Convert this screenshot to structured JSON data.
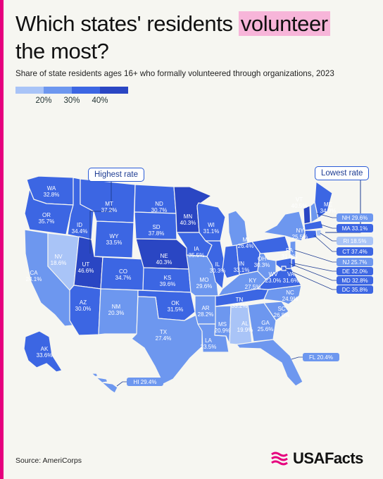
{
  "title": {
    "part1": "Which states' residents",
    "highlight": "volunteer",
    "part2": "the most?"
  },
  "subtitle": "Share of state residents ages 16+ who formally volunteered through organizations, 2023",
  "legend": {
    "colors": [
      "#a9c4f7",
      "#6d97ef",
      "#3c66e3",
      "#2a46c3"
    ],
    "ticks": [
      "20%",
      "30%",
      "40%"
    ]
  },
  "callouts": {
    "highest": "Highest rate",
    "lowest": "Lowest rate"
  },
  "source": "Source: AmeriCorps",
  "brand": "USAFacts",
  "colors": {
    "accent": "#e6007e",
    "highlight": "#f7b5d9",
    "map_outline": "#f6f6f1"
  },
  "map_data": [
    {
      "state": "WA",
      "value": "32.8%"
    },
    {
      "state": "OR",
      "value": "35.7%"
    },
    {
      "state": "CA",
      "value": "24.1%"
    },
    {
      "state": "NV",
      "value": "18.6%"
    },
    {
      "state": "ID",
      "value": "34.4%"
    },
    {
      "state": "MT",
      "value": "37.2%"
    },
    {
      "state": "WY",
      "value": "33.5%"
    },
    {
      "state": "UT",
      "value": "46.6%"
    },
    {
      "state": "AZ",
      "value": "30.0%"
    },
    {
      "state": "CO",
      "value": "34.7%"
    },
    {
      "state": "NM",
      "value": "20.3%"
    },
    {
      "state": "ND",
      "value": "30.7%"
    },
    {
      "state": "SD",
      "value": "37.8%"
    },
    {
      "state": "NE",
      "value": "40.3%"
    },
    {
      "state": "KS",
      "value": "39.6%"
    },
    {
      "state": "OK",
      "value": "31.5%"
    },
    {
      "state": "TX",
      "value": "27.4%"
    },
    {
      "state": "MN",
      "value": "40.3%"
    },
    {
      "state": "IA",
      "value": "35.5%"
    },
    {
      "state": "MO",
      "value": "29.6%"
    },
    {
      "state": "AR",
      "value": "28.2%"
    },
    {
      "state": "LA",
      "value": "23.5%"
    },
    {
      "state": "WI",
      "value": "31.1%"
    },
    {
      "state": "IL",
      "value": "30.3%"
    },
    {
      "state": "MI",
      "value": "26.4%"
    },
    {
      "state": "IN",
      "value": "33.1%"
    },
    {
      "state": "OH",
      "value": "30.3%"
    },
    {
      "state": "KY",
      "value": "27.5%"
    },
    {
      "state": "TN",
      "value": "33.2%"
    },
    {
      "state": "MS",
      "value": "20.9%"
    },
    {
      "state": "AL",
      "value": "19.9%"
    },
    {
      "state": "GA",
      "value": "25.6%"
    },
    {
      "state": "FL",
      "value": "20.4%"
    },
    {
      "state": "SC",
      "value": "26.8%"
    },
    {
      "state": "NC",
      "value": "24.9%"
    },
    {
      "state": "VA",
      "value": "31.6%"
    },
    {
      "state": "WV",
      "value": "23.0%"
    },
    {
      "state": "PA",
      "value": "31.0%"
    },
    {
      "state": "NY",
      "value": "25.5%"
    },
    {
      "state": "ME",
      "value": "34.9%"
    },
    {
      "state": "VT",
      "value": "40.5%"
    },
    {
      "state": "NH",
      "value": "29.6%"
    },
    {
      "state": "MA",
      "value": "33.1%"
    },
    {
      "state": "RI",
      "value": "18.5%"
    },
    {
      "state": "CT",
      "value": "37.4%"
    },
    {
      "state": "NJ",
      "value": "25.7%"
    },
    {
      "state": "DE",
      "value": "32.0%"
    },
    {
      "state": "MD",
      "value": "32.8%"
    },
    {
      "state": "DC",
      "value": "35.8%"
    },
    {
      "state": "AK",
      "value": "33.6%"
    },
    {
      "state": "HI",
      "value": "29.4%"
    }
  ]
}
